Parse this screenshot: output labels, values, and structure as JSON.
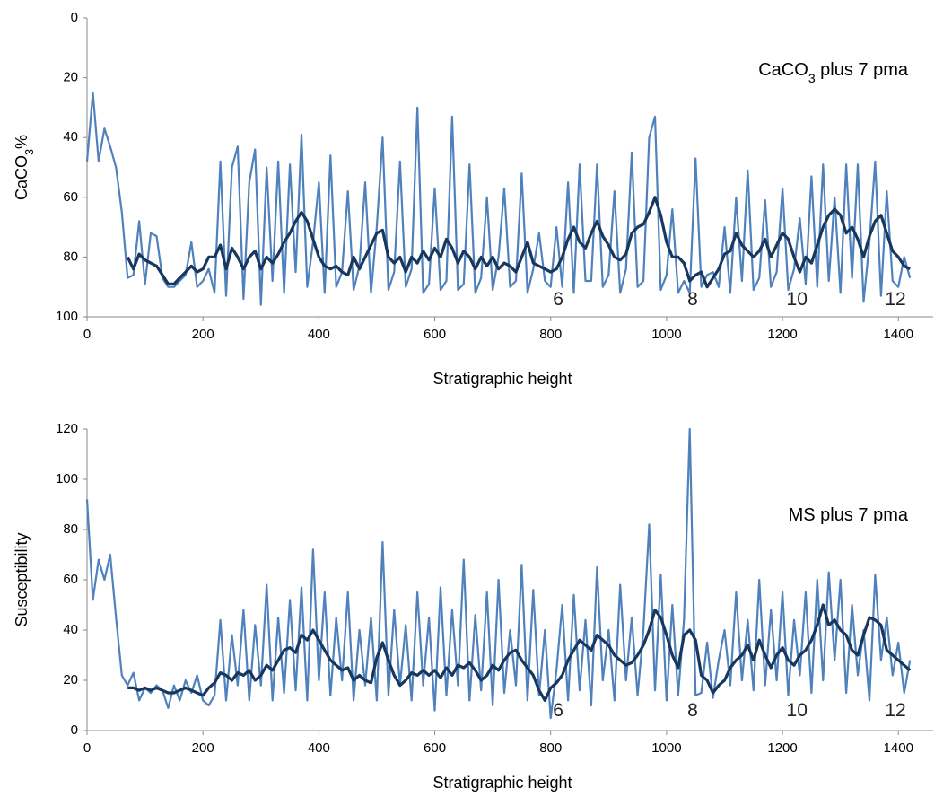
{
  "chart_data": [
    {
      "type": "line",
      "ylabel": [
        {
          "text": "CaCO"
        },
        {
          "text": "3",
          "sub": true
        },
        {
          "text": "%"
        }
      ],
      "xlabel": "Stratigraphic height",
      "annotation": [
        {
          "text": "CaCO"
        },
        {
          "text": "3",
          "sub": true
        },
        {
          "text": " plus 7 pma"
        }
      ],
      "xlim": [
        0,
        1460
      ],
      "xticks": [
        0,
        200,
        400,
        600,
        800,
        1000,
        1200,
        1400
      ],
      "ylim": [
        0,
        100
      ],
      "yticks": [
        0,
        20,
        40,
        60,
        80,
        100
      ],
      "y_reversed": true,
      "cycle_labels": [
        {
          "x": 813,
          "label": "6"
        },
        {
          "x": 1045,
          "label": "8"
        },
        {
          "x": 1225,
          "label": "10"
        },
        {
          "x": 1395,
          "label": "12"
        }
      ],
      "x": [
        0,
        10,
        20,
        30,
        40,
        50,
        60,
        70,
        80,
        90,
        100,
        110,
        120,
        130,
        140,
        150,
        160,
        170,
        180,
        190,
        200,
        210,
        220,
        230,
        240,
        250,
        260,
        270,
        280,
        290,
        300,
        310,
        320,
        330,
        340,
        350,
        360,
        370,
        380,
        390,
        400,
        410,
        420,
        430,
        440,
        450,
        460,
        470,
        480,
        490,
        500,
        510,
        520,
        530,
        540,
        550,
        560,
        570,
        580,
        590,
        600,
        610,
        620,
        630,
        640,
        650,
        660,
        670,
        680,
        690,
        700,
        710,
        720,
        730,
        740,
        750,
        760,
        770,
        780,
        790,
        800,
        810,
        820,
        830,
        840,
        850,
        860,
        870,
        880,
        890,
        900,
        910,
        920,
        930,
        940,
        950,
        960,
        970,
        980,
        990,
        1000,
        1010,
        1020,
        1030,
        1040,
        1050,
        1060,
        1070,
        1080,
        1090,
        1100,
        1110,
        1120,
        1130,
        1140,
        1150,
        1160,
        1170,
        1180,
        1190,
        1200,
        1210,
        1220,
        1230,
        1240,
        1250,
        1260,
        1270,
        1280,
        1290,
        1300,
        1310,
        1320,
        1330,
        1340,
        1350,
        1360,
        1370,
        1380,
        1390,
        1400,
        1410,
        1420
      ],
      "series": [
        {
          "color": "#4f81bd",
          "values": [
            48,
            25,
            48,
            37,
            43,
            50,
            65,
            87,
            86,
            68,
            89,
            72,
            73,
            87,
            90,
            90,
            88,
            86,
            75,
            90,
            88,
            84,
            92,
            48,
            93,
            50,
            43,
            94,
            55,
            44,
            96,
            50,
            88,
            48,
            92,
            49,
            85,
            39,
            90,
            75,
            55,
            92,
            46,
            90,
            85,
            58,
            91,
            83,
            55,
            92,
            70,
            40,
            91,
            85,
            48,
            90,
            84,
            30,
            92,
            89,
            57,
            91,
            88,
            33,
            91,
            89,
            49,
            92,
            87,
            60,
            91,
            80,
            57,
            90,
            88,
            52,
            92,
            84,
            72,
            88,
            90,
            70,
            90,
            55,
            92,
            49,
            88,
            88,
            49,
            90,
            86,
            58,
            92,
            84,
            45,
            90,
            88,
            40,
            33,
            91,
            86,
            64,
            92,
            88,
            92,
            47,
            90,
            86,
            85,
            90,
            70,
            92,
            60,
            88,
            51,
            91,
            87,
            61,
            90,
            85,
            57,
            91,
            84,
            67,
            89,
            53,
            90,
            49,
            88,
            60,
            92,
            49,
            87,
            49,
            95,
            75,
            48,
            93,
            58,
            88,
            90,
            80,
            87
          ]
        },
        {
          "color": "#17375e",
          "values": [
            null,
            null,
            null,
            null,
            null,
            null,
            null,
            80,
            84,
            79,
            81,
            82,
            83,
            86,
            89,
            89,
            87,
            85,
            83,
            85,
            84,
            80,
            80,
            76,
            84,
            77,
            80,
            84,
            80,
            78,
            84,
            80,
            82,
            79,
            75,
            72,
            68,
            65,
            68,
            74,
            80,
            83,
            84,
            83,
            85,
            86,
            80,
            84,
            80,
            76,
            72,
            71,
            80,
            82,
            80,
            85,
            80,
            82,
            78,
            81,
            77,
            80,
            74,
            77,
            82,
            78,
            80,
            84,
            80,
            83,
            80,
            84,
            82,
            83,
            85,
            80,
            75,
            82,
            83,
            84,
            85,
            84,
            80,
            74,
            70,
            75,
            77,
            72,
            68,
            73,
            76,
            80,
            81,
            79,
            72,
            70,
            69,
            65,
            60,
            66,
            75,
            80,
            80,
            82,
            88,
            86,
            85,
            90,
            87,
            84,
            79,
            78,
            72,
            76,
            78,
            80,
            78,
            74,
            80,
            76,
            72,
            74,
            80,
            85,
            80,
            82,
            76,
            70,
            66,
            64,
            66,
            72,
            70,
            74,
            80,
            73,
            68,
            66,
            72,
            78,
            80,
            83,
            84
          ]
        }
      ]
    },
    {
      "type": "line",
      "ylabel": [
        {
          "text": "Susceptibility"
        }
      ],
      "xlabel": "Stratigraphic height",
      "annotation": [
        {
          "text": "MS plus 7 pma"
        }
      ],
      "xlim": [
        0,
        1460
      ],
      "xticks": [
        0,
        200,
        400,
        600,
        800,
        1000,
        1200,
        1400
      ],
      "ylim": [
        0,
        120
      ],
      "yticks": [
        0,
        20,
        40,
        60,
        80,
        100,
        120
      ],
      "y_reversed": false,
      "cycle_labels": [
        {
          "x": 813,
          "label": "6"
        },
        {
          "x": 1045,
          "label": "8"
        },
        {
          "x": 1225,
          "label": "10"
        },
        {
          "x": 1395,
          "label": "12"
        }
      ],
      "x": [
        0,
        10,
        20,
        30,
        40,
        50,
        60,
        70,
        80,
        90,
        100,
        110,
        120,
        130,
        140,
        150,
        160,
        170,
        180,
        190,
        200,
        210,
        220,
        230,
        240,
        250,
        260,
        270,
        280,
        290,
        300,
        310,
        320,
        330,
        340,
        350,
        360,
        370,
        380,
        390,
        400,
        410,
        420,
        430,
        440,
        450,
        460,
        470,
        480,
        490,
        500,
        510,
        520,
        530,
        540,
        550,
        560,
        570,
        580,
        590,
        600,
        610,
        620,
        630,
        640,
        650,
        660,
        670,
        680,
        690,
        700,
        710,
        720,
        730,
        740,
        750,
        760,
        770,
        780,
        790,
        800,
        810,
        820,
        830,
        840,
        850,
        860,
        870,
        880,
        890,
        900,
        910,
        920,
        930,
        940,
        950,
        960,
        970,
        980,
        990,
        1000,
        1010,
        1020,
        1030,
        1040,
        1050,
        1060,
        1070,
        1080,
        1090,
        1100,
        1110,
        1120,
        1130,
        1140,
        1150,
        1160,
        1170,
        1180,
        1190,
        1200,
        1210,
        1220,
        1230,
        1240,
        1250,
        1260,
        1270,
        1280,
        1290,
        1300,
        1310,
        1320,
        1330,
        1340,
        1350,
        1360,
        1370,
        1380,
        1390,
        1400,
        1410,
        1420
      ],
      "series": [
        {
          "color": "#4f81bd",
          "values": [
            92,
            52,
            68,
            60,
            70,
            45,
            22,
            18,
            23,
            12,
            17,
            15,
            18,
            16,
            9,
            18,
            12,
            20,
            15,
            22,
            12,
            10,
            14,
            44,
            12,
            38,
            18,
            48,
            12,
            42,
            18,
            58,
            12,
            45,
            15,
            52,
            16,
            57,
            12,
            72,
            20,
            55,
            14,
            45,
            20,
            55,
            12,
            40,
            18,
            45,
            12,
            75,
            14,
            48,
            18,
            42,
            12,
            55,
            18,
            45,
            8,
            57,
            14,
            48,
            18,
            68,
            12,
            46,
            16,
            55,
            10,
            60,
            15,
            40,
            18,
            66,
            12,
            56,
            14,
            40,
            5,
            24,
            50,
            12,
            54,
            16,
            44,
            10,
            65,
            20,
            40,
            12,
            58,
            20,
            45,
            14,
            40,
            82,
            16,
            62,
            12,
            50,
            14,
            44,
            120,
            14,
            15,
            35,
            13,
            28,
            40,
            18,
            55,
            20,
            44,
            16,
            60,
            18,
            48,
            20,
            55,
            14,
            44,
            22,
            55,
            15,
            60,
            20,
            63,
            28,
            60,
            15,
            50,
            22,
            40,
            12,
            62,
            28,
            45,
            22,
            35,
            15,
            28
          ]
        },
        {
          "color": "#17375e",
          "values": [
            null,
            null,
            null,
            null,
            null,
            null,
            null,
            17,
            17,
            16,
            17,
            16,
            17,
            16,
            15,
            15,
            16,
            17,
            16,
            15,
            14,
            17,
            19,
            23,
            22,
            20,
            23,
            22,
            24,
            20,
            22,
            26,
            24,
            28,
            32,
            33,
            31,
            38,
            36,
            40,
            36,
            32,
            28,
            26,
            24,
            25,
            20,
            22,
            20,
            19,
            29,
            35,
            28,
            22,
            18,
            20,
            23,
            22,
            24,
            22,
            24,
            21,
            25,
            22,
            26,
            25,
            27,
            24,
            20,
            22,
            26,
            24,
            28,
            31,
            32,
            28,
            25,
            22,
            16,
            12,
            17,
            19,
            22,
            28,
            32,
            36,
            34,
            32,
            38,
            36,
            34,
            30,
            28,
            26,
            27,
            30,
            34,
            40,
            48,
            45,
            38,
            30,
            25,
            38,
            40,
            36,
            22,
            20,
            15,
            18,
            20,
            25,
            28,
            30,
            34,
            28,
            36,
            30,
            25,
            30,
            33,
            28,
            26,
            30,
            32,
            36,
            42,
            50,
            42,
            44,
            40,
            38,
            32,
            30,
            38,
            45,
            44,
            42,
            32,
            30,
            28,
            26,
            24
          ]
        }
      ]
    }
  ]
}
